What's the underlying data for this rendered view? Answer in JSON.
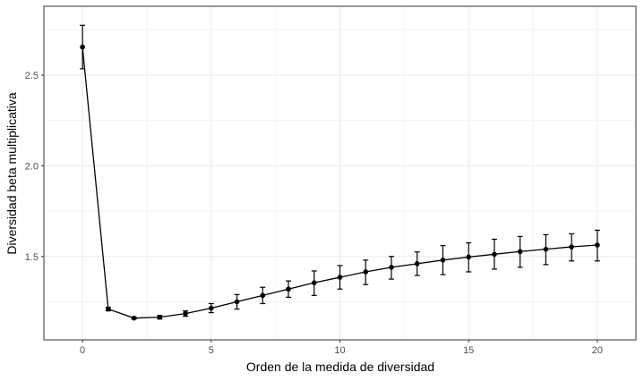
{
  "chart_data": {
    "type": "line",
    "title": "",
    "xlabel": "Orden de la medida de diversidad",
    "ylabel": "Diversidad beta multiplicativa",
    "xlim": [
      -1.5,
      21.5
    ],
    "ylim": [
      1.04,
      2.88
    ],
    "x_ticks": [
      0,
      5,
      10,
      15,
      20
    ],
    "x_tick_labels": [
      "0",
      "5",
      "10",
      "15",
      "20"
    ],
    "y_ticks": [
      1.5,
      2.0,
      2.5
    ],
    "y_tick_labels": [
      "1.5",
      "2.0",
      "2.5"
    ],
    "grid": true,
    "series": [
      {
        "x": [
          0,
          1,
          2,
          3,
          4,
          5,
          6,
          7,
          8,
          9,
          10,
          11,
          12,
          13,
          14,
          15,
          16,
          17,
          18,
          19,
          20
        ],
        "y": [
          2.655,
          1.21,
          1.16,
          1.165,
          1.185,
          1.215,
          1.25,
          1.285,
          1.32,
          1.355,
          1.385,
          1.415,
          1.44,
          1.46,
          1.48,
          1.497,
          1.512,
          1.527,
          1.54,
          1.553,
          1.563
        ],
        "err_lo": [
          2.535,
          1.2,
          1.155,
          1.155,
          1.17,
          1.19,
          1.21,
          1.24,
          1.275,
          1.285,
          1.32,
          1.345,
          1.375,
          1.395,
          1.4,
          1.415,
          1.43,
          1.44,
          1.455,
          1.475,
          1.475
        ],
        "err_hi": [
          2.775,
          1.22,
          1.165,
          1.175,
          1.2,
          1.24,
          1.29,
          1.33,
          1.365,
          1.42,
          1.45,
          1.48,
          1.5,
          1.525,
          1.56,
          1.575,
          1.595,
          1.61,
          1.62,
          1.625,
          1.645
        ],
        "color": "#000000"
      }
    ]
  }
}
